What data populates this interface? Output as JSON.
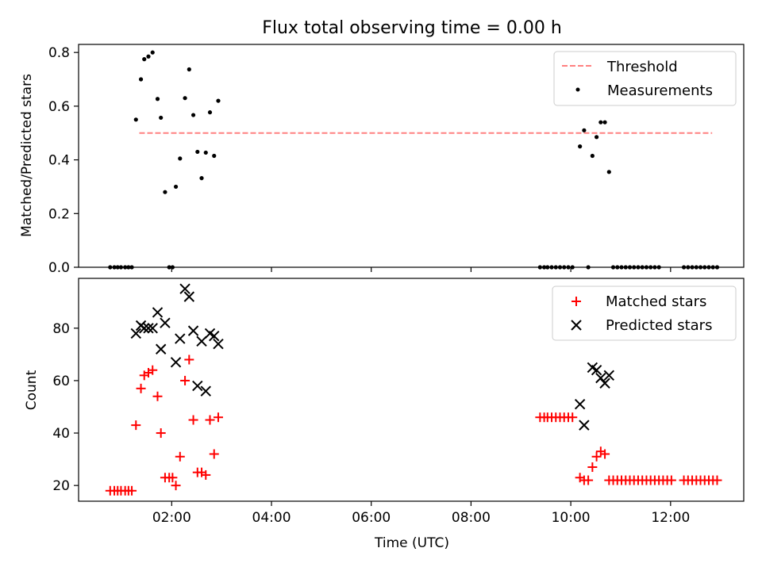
{
  "figure": {
    "title": "Flux total observing time = 0.00 h"
  },
  "chart_data": [
    {
      "type": "scatter",
      "ylabel": "Matched/Predicted stars",
      "xlabel": "",
      "xlim": [
        "00:08",
        "13:28"
      ],
      "ylim": [
        0,
        0.83
      ],
      "yticks": [
        0.0,
        0.2,
        0.4,
        0.6,
        0.8
      ],
      "ytick_labels": [
        "0.0",
        "0.2",
        "0.4",
        "0.6",
        "0.8"
      ],
      "legend": {
        "placement": "upper right",
        "entries": [
          "Threshold",
          "Measurements"
        ]
      },
      "threshold": {
        "name": "Threshold",
        "value": 0.5,
        "x_range": [
          "01:21",
          "12:50"
        ],
        "color": "#ff8080",
        "style": "dashed"
      },
      "series": [
        {
          "name": "Measurements",
          "color": "#000000",
          "marker": "dot",
          "points": [
            [
              "00:46",
              0.0
            ],
            [
              "00:51",
              0.0
            ],
            [
              "00:55",
              0.0
            ],
            [
              "00:59",
              0.0
            ],
            [
              "01:04",
              0.0
            ],
            [
              "01:08",
              0.0
            ],
            [
              "01:12",
              0.0
            ],
            [
              "01:17",
              0.55
            ],
            [
              "01:23",
              0.7
            ],
            [
              "01:27",
              0.775
            ],
            [
              "01:32",
              0.785
            ],
            [
              "01:37",
              0.8
            ],
            [
              "01:43",
              0.627
            ],
            [
              "01:47",
              0.557
            ],
            [
              "01:52",
              0.28
            ],
            [
              "01:57",
              0.0
            ],
            [
              "02:01",
              0.0
            ],
            [
              "02:05",
              0.3
            ],
            [
              "02:10",
              0.405
            ],
            [
              "02:16",
              0.63
            ],
            [
              "02:21",
              0.737
            ],
            [
              "02:26",
              0.567
            ],
            [
              "02:31",
              0.43
            ],
            [
              "02:36",
              0.332
            ],
            [
              "02:41",
              0.427
            ],
            [
              "02:46",
              0.577
            ],
            [
              "02:51",
              0.415
            ],
            [
              "02:56",
              0.62
            ],
            [
              "09:23",
              0.0
            ],
            [
              "09:28",
              0.0
            ],
            [
              "09:32",
              0.0
            ],
            [
              "09:37",
              0.0
            ],
            [
              "09:42",
              0.0
            ],
            [
              "09:47",
              0.0
            ],
            [
              "09:52",
              0.0
            ],
            [
              "09:57",
              0.0
            ],
            [
              "10:02",
              0.0
            ],
            [
              "10:11",
              0.45
            ],
            [
              "10:16",
              0.51
            ],
            [
              "10:21",
              0.0
            ],
            [
              "10:26",
              0.415
            ],
            [
              "10:31",
              0.485
            ],
            [
              "10:36",
              0.54
            ],
            [
              "10:41",
              0.54
            ],
            [
              "10:46",
              0.355
            ],
            [
              "10:51",
              0.0
            ],
            [
              "10:56",
              0.0
            ],
            [
              "11:01",
              0.0
            ],
            [
              "11:06",
              0.0
            ],
            [
              "11:11",
              0.0
            ],
            [
              "11:16",
              0.0
            ],
            [
              "11:21",
              0.0
            ],
            [
              "11:26",
              0.0
            ],
            [
              "11:31",
              0.0
            ],
            [
              "11:36",
              0.0
            ],
            [
              "11:41",
              0.0
            ],
            [
              "11:46",
              0.0
            ],
            [
              "12:16",
              0.0
            ],
            [
              "12:21",
              0.0
            ],
            [
              "12:26",
              0.0
            ],
            [
              "12:31",
              0.0
            ],
            [
              "12:36",
              0.0
            ],
            [
              "12:41",
              0.0
            ],
            [
              "12:46",
              0.0
            ],
            [
              "12:51",
              0.0
            ],
            [
              "12:56",
              0.0
            ]
          ]
        }
      ]
    },
    {
      "type": "scatter",
      "ylabel": "Count",
      "xlabel": "Time (UTC)",
      "xlim": [
        "00:08",
        "13:28"
      ],
      "ylim": [
        14,
        99
      ],
      "yticks": [
        20,
        40,
        60,
        80
      ],
      "ytick_labels": [
        "20",
        "40",
        "60",
        "80"
      ],
      "xticks": [
        "02:00",
        "04:00",
        "06:00",
        "08:00",
        "10:00",
        "12:00"
      ],
      "xtick_labels": [
        "02:00",
        "04:00",
        "06:00",
        "08:00",
        "10:00",
        "12:00"
      ],
      "legend": {
        "placement": "upper right",
        "entries": [
          "Matched stars",
          "Predicted stars"
        ]
      },
      "series": [
        {
          "name": "Matched stars",
          "color": "#ff0000",
          "marker": "plus",
          "points": [
            [
              "00:46",
              18
            ],
            [
              "00:51",
              18
            ],
            [
              "00:55",
              18
            ],
            [
              "00:59",
              18
            ],
            [
              "01:04",
              18
            ],
            [
              "01:08",
              18
            ],
            [
              "01:12",
              18
            ],
            [
              "01:17",
              43
            ],
            [
              "01:23",
              57
            ],
            [
              "01:27",
              62
            ],
            [
              "01:32",
              63
            ],
            [
              "01:37",
              64
            ],
            [
              "01:43",
              54
            ],
            [
              "01:47",
              40
            ],
            [
              "01:52",
              23
            ],
            [
              "01:57",
              23
            ],
            [
              "02:01",
              23
            ],
            [
              "02:05",
              20
            ],
            [
              "02:10",
              31
            ],
            [
              "02:16",
              60
            ],
            [
              "02:21",
              68
            ],
            [
              "02:26",
              45
            ],
            [
              "02:31",
              25
            ],
            [
              "02:36",
              25
            ],
            [
              "02:41",
              24
            ],
            [
              "02:46",
              45
            ],
            [
              "02:51",
              32
            ],
            [
              "02:56",
              46
            ],
            [
              "09:23",
              46
            ],
            [
              "09:28",
              46
            ],
            [
              "09:32",
              46
            ],
            [
              "09:37",
              46
            ],
            [
              "09:42",
              46
            ],
            [
              "09:47",
              46
            ],
            [
              "09:52",
              46
            ],
            [
              "09:57",
              46
            ],
            [
              "10:02",
              46
            ],
            [
              "10:11",
              23
            ],
            [
              "10:16",
              22
            ],
            [
              "10:21",
              22
            ],
            [
              "10:26",
              27
            ],
            [
              "10:31",
              31
            ],
            [
              "10:36",
              33
            ],
            [
              "10:41",
              32
            ],
            [
              "10:46",
              22
            ],
            [
              "10:51",
              22
            ],
            [
              "10:56",
              22
            ],
            [
              "11:01",
              22
            ],
            [
              "11:06",
              22
            ],
            [
              "11:11",
              22
            ],
            [
              "11:16",
              22
            ],
            [
              "11:21",
              22
            ],
            [
              "11:26",
              22
            ],
            [
              "11:31",
              22
            ],
            [
              "11:36",
              22
            ],
            [
              "11:41",
              22
            ],
            [
              "11:46",
              22
            ],
            [
              "11:51",
              22
            ],
            [
              "11:56",
              22
            ],
            [
              "12:01",
              22
            ],
            [
              "12:16",
              22
            ],
            [
              "12:21",
              22
            ],
            [
              "12:26",
              22
            ],
            [
              "12:31",
              22
            ],
            [
              "12:36",
              22
            ],
            [
              "12:41",
              22
            ],
            [
              "12:46",
              22
            ],
            [
              "12:51",
              22
            ],
            [
              "12:56",
              22
            ]
          ]
        },
        {
          "name": "Predicted stars",
          "color": "#000000",
          "marker": "cross",
          "points": [
            [
              "01:17",
              78
            ],
            [
              "01:23",
              81
            ],
            [
              "01:27",
              80
            ],
            [
              "01:32",
              80
            ],
            [
              "01:37",
              80
            ],
            [
              "01:43",
              86
            ],
            [
              "01:47",
              72
            ],
            [
              "01:52",
              82
            ],
            [
              "02:05",
              67
            ],
            [
              "02:10",
              76
            ],
            [
              "02:16",
              95
            ],
            [
              "02:21",
              92
            ],
            [
              "02:26",
              79
            ],
            [
              "02:31",
              58
            ],
            [
              "02:36",
              75
            ],
            [
              "02:41",
              56
            ],
            [
              "02:46",
              78
            ],
            [
              "02:51",
              77
            ],
            [
              "02:56",
              74
            ],
            [
              "10:11",
              51
            ],
            [
              "10:16",
              43
            ],
            [
              "10:26",
              65
            ],
            [
              "10:31",
              64
            ],
            [
              "10:36",
              61
            ],
            [
              "10:41",
              59
            ],
            [
              "10:46",
              62
            ]
          ]
        }
      ]
    }
  ]
}
